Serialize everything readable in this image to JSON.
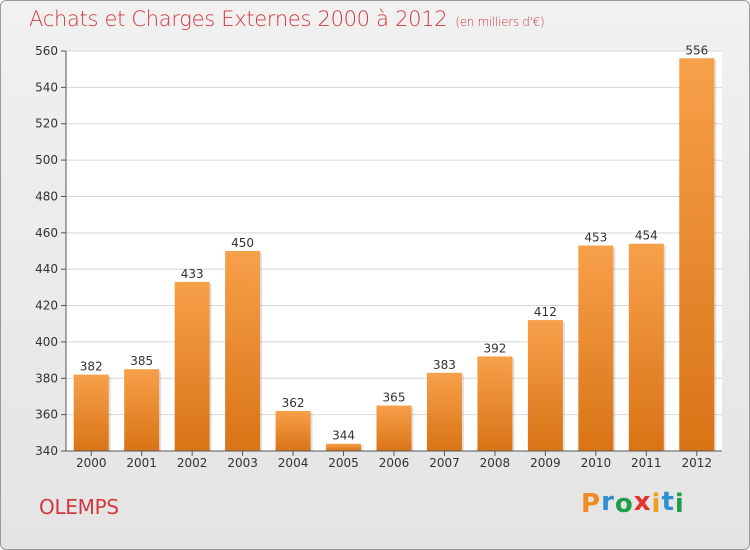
{
  "title": "Achats et Charges Externes 2000 à 2012",
  "subtitle": "(en milliers d'€)",
  "commune": "OLEMPS",
  "logo": {
    "letters": [
      "P",
      "r",
      "o",
      "x",
      "i",
      "t",
      "i"
    ],
    "colors": [
      "#f08a22",
      "#2f8fd6",
      "#1e9e4a",
      "#e3322b",
      "#f0a020",
      "#2f8fd6",
      "#1e9e4a"
    ]
  },
  "colors": {
    "bar_light": "#f7a04a",
    "bar_dark": "#d97416",
    "text": "#333333",
    "title": "#d1383f"
  },
  "chart_data": {
    "type": "bar",
    "categories": [
      "2000",
      "2001",
      "2002",
      "2003",
      "2004",
      "2005",
      "2006",
      "2007",
      "2008",
      "2009",
      "2010",
      "2011",
      "2012"
    ],
    "values": [
      382,
      385,
      433,
      450,
      362,
      344,
      365,
      383,
      392,
      412,
      453,
      454,
      556
    ],
    "ylim": [
      340,
      560
    ],
    "yticks": [
      340,
      360,
      380,
      400,
      420,
      440,
      460,
      480,
      500,
      520,
      540,
      560
    ],
    "grid": true,
    "data_labels": true
  }
}
